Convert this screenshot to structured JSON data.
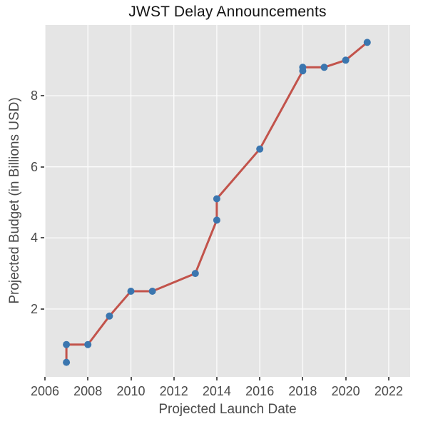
{
  "title": "JWST Delay Announcements",
  "colors": {
    "plot_background": "#e5e5e5",
    "gridline": "#fbfbfb",
    "line": "#c2534b",
    "marker": "#3b76af",
    "tick_text": "#4a4a4a",
    "title_text": "#141414"
  },
  "chart_data": {
    "type": "line",
    "title": "JWST Delay Announcements",
    "xlabel": "Projected Launch Date",
    "ylabel": "Projected Budget (in Billions USD)",
    "x": [
      2007,
      2007,
      2008,
      2009,
      2010,
      2011,
      2013,
      2014,
      2014,
      2016,
      2018,
      2018,
      2019,
      2020,
      2021
    ],
    "y": [
      0.5,
      1.0,
      1.0,
      1.8,
      2.5,
      2.5,
      3.0,
      4.5,
      5.1,
      6.5,
      8.7,
      8.8,
      8.8,
      9.0,
      9.5
    ],
    "xticks": [
      2006,
      2008,
      2010,
      2012,
      2014,
      2016,
      2018,
      2020,
      2022
    ],
    "yticks": [
      2,
      4,
      6,
      8
    ],
    "xlim": [
      2006,
      2023
    ],
    "ylim": [
      0.09,
      9.99
    ],
    "grid": true,
    "legend": false,
    "marker_style": "circle",
    "line_width": 3,
    "marker_radius": 5
  }
}
